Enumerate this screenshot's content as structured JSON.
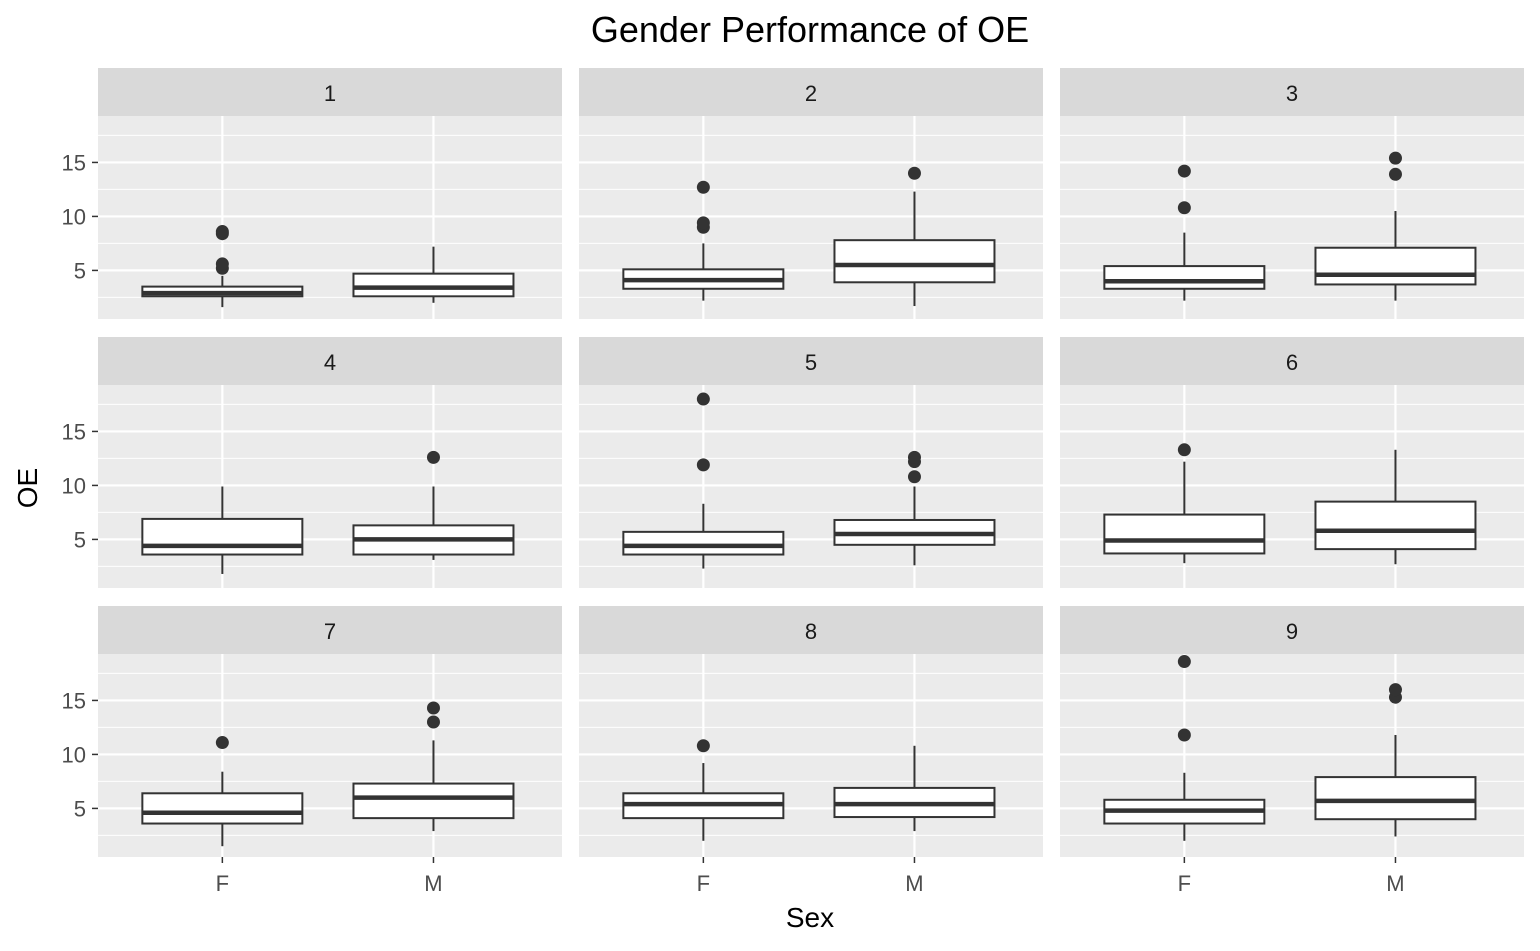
{
  "chart_data": {
    "type": "boxplot",
    "title": "Gender Performance of OE",
    "xlabel": "Sex",
    "ylabel": "OE",
    "categories": [
      "F",
      "M"
    ],
    "ylim": [
      0.5,
      19.3
    ],
    "yticks": [
      5,
      10,
      15
    ],
    "facet_layout": "3x3 grid",
    "colors": {
      "panel_bg": "#ebebeb",
      "strip_bg": "#d9d9d9",
      "grid": "#ffffff",
      "box_fill": "#ffffff",
      "box_line": "#333333",
      "outlier": "#333333"
    },
    "facets": [
      {
        "label": "1",
        "boxes": [
          {
            "group": "F",
            "min": 1.6,
            "q1": 2.6,
            "median": 2.9,
            "q3": 3.5,
            "max": 4.5,
            "outliers": [
              5.2,
              5.6,
              8.4,
              8.6
            ]
          },
          {
            "group": "M",
            "min": 2.0,
            "q1": 2.6,
            "median": 3.4,
            "q3": 4.7,
            "max": 7.2,
            "outliers": []
          }
        ]
      },
      {
        "label": "2",
        "boxes": [
          {
            "group": "F",
            "min": 2.2,
            "q1": 3.3,
            "median": 4.1,
            "q3": 5.1,
            "max": 7.5,
            "outliers": [
              9.0,
              9.4,
              12.7
            ]
          },
          {
            "group": "M",
            "min": 1.7,
            "q1": 3.9,
            "median": 5.5,
            "q3": 7.8,
            "max": 12.3,
            "outliers": [
              14.0
            ]
          }
        ]
      },
      {
        "label": "3",
        "boxes": [
          {
            "group": "F",
            "min": 2.2,
            "q1": 3.3,
            "median": 4.0,
            "q3": 5.4,
            "max": 8.5,
            "outliers": [
              10.8,
              14.2
            ]
          },
          {
            "group": "M",
            "min": 2.2,
            "q1": 3.7,
            "median": 4.6,
            "q3": 7.1,
            "max": 10.5,
            "outliers": [
              13.9,
              15.4
            ]
          }
        ]
      },
      {
        "label": "4",
        "boxes": [
          {
            "group": "F",
            "min": 1.8,
            "q1": 3.6,
            "median": 4.4,
            "q3": 6.9,
            "max": 9.9,
            "outliers": []
          },
          {
            "group": "M",
            "min": 3.1,
            "q1": 3.6,
            "median": 5.0,
            "q3": 6.3,
            "max": 9.9,
            "outliers": [
              12.6
            ]
          }
        ]
      },
      {
        "label": "5",
        "boxes": [
          {
            "group": "F",
            "min": 2.3,
            "q1": 3.6,
            "median": 4.4,
            "q3": 5.7,
            "max": 8.3,
            "outliers": [
              11.9,
              18.0
            ]
          },
          {
            "group": "M",
            "min": 2.6,
            "q1": 4.5,
            "median": 5.5,
            "q3": 6.8,
            "max": 9.9,
            "outliers": [
              10.8,
              12.2,
              12.6
            ]
          }
        ]
      },
      {
        "label": "6",
        "boxes": [
          {
            "group": "F",
            "min": 2.8,
            "q1": 3.7,
            "median": 4.9,
            "q3": 7.3,
            "max": 12.2,
            "outliers": [
              13.3
            ]
          },
          {
            "group": "M",
            "min": 2.7,
            "q1": 4.1,
            "median": 5.8,
            "q3": 8.5,
            "max": 13.3,
            "outliers": []
          }
        ]
      },
      {
        "label": "7",
        "boxes": [
          {
            "group": "F",
            "min": 1.5,
            "q1": 3.6,
            "median": 4.6,
            "q3": 6.4,
            "max": 8.4,
            "outliers": [
              11.1
            ]
          },
          {
            "group": "M",
            "min": 2.9,
            "q1": 4.1,
            "median": 6.0,
            "q3": 7.3,
            "max": 11.3,
            "outliers": [
              13.0,
              14.3
            ]
          }
        ]
      },
      {
        "label": "8",
        "boxes": [
          {
            "group": "F",
            "min": 2.0,
            "q1": 4.1,
            "median": 5.4,
            "q3": 6.4,
            "max": 9.2,
            "outliers": [
              10.8
            ]
          },
          {
            "group": "M",
            "min": 2.9,
            "q1": 4.2,
            "median": 5.4,
            "q3": 6.9,
            "max": 10.8,
            "outliers": []
          }
        ]
      },
      {
        "label": "9",
        "boxes": [
          {
            "group": "F",
            "min": 2.0,
            "q1": 3.6,
            "median": 4.8,
            "q3": 5.8,
            "max": 8.3,
            "outliers": [
              11.8,
              18.6
            ]
          },
          {
            "group": "M",
            "min": 2.4,
            "q1": 4.0,
            "median": 5.7,
            "q3": 7.9,
            "max": 11.8,
            "outliers": [
              15.3,
              16.0
            ]
          }
        ]
      }
    ]
  }
}
